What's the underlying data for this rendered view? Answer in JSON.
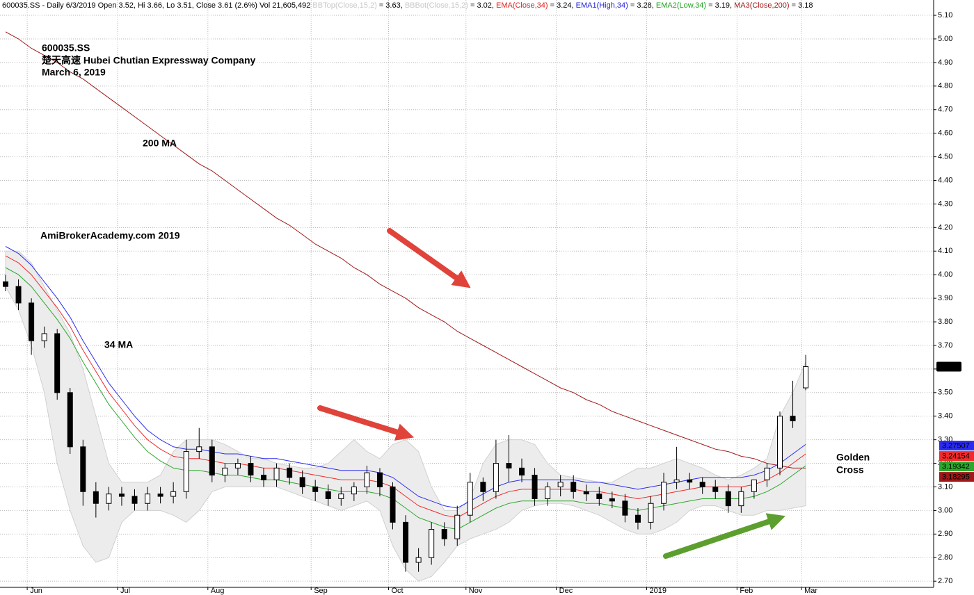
{
  "chart_data": {
    "type": "candlestick",
    "header": [
      {
        "text": "600035.SS - Daily 6/3/2019 Open 3.52, Hi 3.66, Lo 3.51, Close 3.61 (2.6%) Vol 21,605,492 ",
        "color": "#000000"
      },
      {
        "text": "BBTop(Close,15,2)",
        "color": "#c8c8c8"
      },
      {
        "text": " = 3.63, ",
        "color": "#000000"
      },
      {
        "text": "BBBot(Close,15,2)",
        "color": "#c8c8c8"
      },
      {
        "text": " = 3.02, ",
        "color": "#000000"
      },
      {
        "text": "EMA(Close,34)",
        "color": "#e02020"
      },
      {
        "text": " = 3.24, ",
        "color": "#000000"
      },
      {
        "text": "EMA1(High,34)",
        "color": "#2020e0"
      },
      {
        "text": " = 3.28, ",
        "color": "#000000"
      },
      {
        "text": "EMA2(Low,34)",
        "color": "#20a020"
      },
      {
        "text": " = 3.19, ",
        "color": "#000000"
      },
      {
        "text": "MA3(Close,200)",
        "color": "#a01818"
      },
      {
        "text": " = 3.18",
        "color": "#000000"
      }
    ],
    "annotations": [
      "600035.SS",
      "楚天高速  Hubei Chutian Expressway Company",
      "March 6, 2019",
      "200 MA",
      "AmiBrokerAcademy.com   2019",
      "34 MA",
      "Golden",
      "Cross"
    ],
    "annotation_color": "#e8453c",
    "categories": [
      null,
      null,
      "Jun",
      null,
      null,
      null,
      null,
      null,
      null,
      "Jul",
      null,
      null,
      null,
      null,
      null,
      null,
      "Aug",
      null,
      null,
      null,
      null,
      null,
      null,
      null,
      "Sep",
      null,
      null,
      null,
      null,
      null,
      "Oct",
      null,
      null,
      null,
      null,
      null,
      "Nov",
      null,
      null,
      null,
      null,
      null,
      null,
      "Dec",
      null,
      null,
      null,
      null,
      null,
      null,
      "2019",
      null,
      null,
      null,
      null,
      null,
      null,
      "Feb",
      null,
      null,
      null,
      null,
      "Mar"
    ],
    "open": [
      3.97,
      3.95,
      3.88,
      3.72,
      3.75,
      3.5,
      3.27,
      3.08,
      3.03,
      3.07,
      3.06,
      3.03,
      3.07,
      3.06,
      3.08,
      3.25,
      3.27,
      3.15,
      3.18,
      3.2,
      3.15,
      3.13,
      3.18,
      3.14,
      3.1,
      3.08,
      3.05,
      3.07,
      3.1,
      3.16,
      3.1,
      2.95,
      2.78,
      2.8,
      2.92,
      2.88,
      2.98,
      3.12,
      3.08,
      3.2,
      3.18,
      3.15,
      3.05,
      3.1,
      3.12,
      3.08,
      3.07,
      3.05,
      3.04,
      2.98,
      2.95,
      3.03,
      3.12,
      3.13,
      3.12,
      3.1,
      3.08,
      3.02,
      3.08,
      3.13,
      3.18,
      3.4,
      3.52
    ],
    "high": [
      4.0,
      3.98,
      3.9,
      3.78,
      3.77,
      3.52,
      3.3,
      3.12,
      3.1,
      3.1,
      3.09,
      3.1,
      3.1,
      3.12,
      3.3,
      3.35,
      3.3,
      3.2,
      3.22,
      3.23,
      3.18,
      3.2,
      3.2,
      3.17,
      3.13,
      3.11,
      3.1,
      3.12,
      3.19,
      3.18,
      3.12,
      2.98,
      2.84,
      2.95,
      2.95,
      3.02,
      3.16,
      3.14,
      3.3,
      3.32,
      3.22,
      3.18,
      3.12,
      3.15,
      3.15,
      3.11,
      3.1,
      3.08,
      3.07,
      3.01,
      3.06,
      3.16,
      3.27,
      3.16,
      3.14,
      3.13,
      3.11,
      3.1,
      3.12,
      3.2,
      3.42,
      3.55,
      3.66
    ],
    "low": [
      3.93,
      3.85,
      3.66,
      3.69,
      3.47,
      3.24,
      3.02,
      2.97,
      3.0,
      3.02,
      3.0,
      3.0,
      3.03,
      3.03,
      3.05,
      3.22,
      3.12,
      3.12,
      3.15,
      3.12,
      3.1,
      3.1,
      3.11,
      3.07,
      3.04,
      3.02,
      3.02,
      3.04,
      3.07,
      3.06,
      2.92,
      2.74,
      2.74,
      2.77,
      2.85,
      2.85,
      2.95,
      3.04,
      3.05,
      3.12,
      3.12,
      3.02,
      3.02,
      3.06,
      3.05,
      3.04,
      3.02,
      3.01,
      2.95,
      2.92,
      2.92,
      3.0,
      3.09,
      3.09,
      3.07,
      3.05,
      2.99,
      2.99,
      3.05,
      3.1,
      3.15,
      3.35,
      3.51
    ],
    "close": [
      3.95,
      3.88,
      3.72,
      3.75,
      3.5,
      3.27,
      3.08,
      3.03,
      3.07,
      3.06,
      3.03,
      3.07,
      3.06,
      3.08,
      3.25,
      3.27,
      3.15,
      3.18,
      3.2,
      3.15,
      3.13,
      3.18,
      3.14,
      3.1,
      3.08,
      3.05,
      3.07,
      3.1,
      3.16,
      3.1,
      2.95,
      2.78,
      2.8,
      2.92,
      2.88,
      2.98,
      3.12,
      3.08,
      3.2,
      3.18,
      3.15,
      3.05,
      3.1,
      3.12,
      3.08,
      3.07,
      3.05,
      3.04,
      2.98,
      2.95,
      3.03,
      3.12,
      3.13,
      3.12,
      3.1,
      3.08,
      3.02,
      3.08,
      3.13,
      3.18,
      3.4,
      3.38,
      3.61
    ],
    "up_color": "#ffffff",
    "down_color": "#000000",
    "band": {
      "color": "#ececec",
      "upper": [
        4.1,
        4.1,
        4.05,
        3.95,
        3.85,
        3.75,
        3.6,
        3.4,
        3.2,
        3.12,
        3.12,
        3.12,
        3.15,
        3.25,
        3.3,
        3.3,
        3.3,
        3.28,
        3.25,
        3.22,
        3.22,
        3.2,
        3.19,
        3.18,
        3.18,
        3.2,
        3.25,
        3.3,
        3.25,
        3.22,
        3.28,
        3.3,
        3.25,
        3.1,
        3.0,
        3.0,
        3.05,
        3.2,
        3.28,
        3.3,
        3.3,
        3.28,
        3.2,
        3.15,
        3.14,
        3.13,
        3.12,
        3.12,
        3.15,
        3.18,
        3.18,
        3.2,
        3.22,
        3.2,
        3.18,
        3.15,
        3.13,
        3.15,
        3.18,
        3.22,
        3.4,
        3.5,
        3.63
      ],
      "lower": [
        3.95,
        3.85,
        3.7,
        3.5,
        3.2,
        3.0,
        2.85,
        2.78,
        2.8,
        2.95,
        3.0,
        3.0,
        3.0,
        2.98,
        2.95,
        3.0,
        3.08,
        3.1,
        3.1,
        3.1,
        3.1,
        3.1,
        3.08,
        3.06,
        3.04,
        3.02,
        3.0,
        3.02,
        3.04,
        3.0,
        2.85,
        2.75,
        2.7,
        2.72,
        2.78,
        2.85,
        2.88,
        2.9,
        2.92,
        2.95,
        3.0,
        3.02,
        3.03,
        3.03,
        3.02,
        3.0,
        2.98,
        2.95,
        2.92,
        2.9,
        2.9,
        2.92,
        2.95,
        3.0,
        3.02,
        3.02,
        3.0,
        2.98,
        2.98,
        3.0,
        3.0,
        3.01,
        3.02
      ]
    },
    "series": [
      {
        "color": "#a01818",
        "values": [
          5.03,
          5.0,
          4.96,
          4.93,
          4.9,
          4.86,
          4.83,
          4.79,
          4.75,
          4.71,
          4.67,
          4.63,
          4.59,
          4.55,
          4.51,
          4.47,
          4.44,
          4.4,
          4.36,
          4.32,
          4.28,
          4.24,
          4.21,
          4.17,
          4.13,
          4.1,
          4.07,
          4.03,
          4.0,
          3.96,
          3.93,
          3.9,
          3.86,
          3.83,
          3.8,
          3.76,
          3.73,
          3.7,
          3.67,
          3.64,
          3.61,
          3.58,
          3.55,
          3.52,
          3.5,
          3.47,
          3.45,
          3.42,
          3.4,
          3.38,
          3.36,
          3.34,
          3.32,
          3.3,
          3.28,
          3.26,
          3.25,
          3.23,
          3.22,
          3.2,
          3.19,
          3.18,
          3.18
        ]
      },
      {
        "color": "#2b2bef",
        "values": [
          4.12,
          4.09,
          4.04,
          3.97,
          3.9,
          3.82,
          3.72,
          3.63,
          3.54,
          3.47,
          3.4,
          3.34,
          3.3,
          3.27,
          3.26,
          3.26,
          3.25,
          3.24,
          3.24,
          3.23,
          3.22,
          3.22,
          3.21,
          3.2,
          3.19,
          3.18,
          3.17,
          3.17,
          3.17,
          3.16,
          3.14,
          3.1,
          3.06,
          3.04,
          3.02,
          3.01,
          3.04,
          3.07,
          3.1,
          3.12,
          3.13,
          3.13,
          3.13,
          3.13,
          3.13,
          3.12,
          3.12,
          3.11,
          3.1,
          3.09,
          3.1,
          3.11,
          3.12,
          3.13,
          3.14,
          3.14,
          3.14,
          3.14,
          3.15,
          3.17,
          3.2,
          3.24,
          3.28
        ]
      },
      {
        "color": "#ef2b2b",
        "values": [
          4.08,
          4.05,
          4.0,
          3.93,
          3.86,
          3.78,
          3.68,
          3.59,
          3.5,
          3.43,
          3.36,
          3.3,
          3.26,
          3.23,
          3.22,
          3.22,
          3.21,
          3.2,
          3.2,
          3.19,
          3.18,
          3.18,
          3.17,
          3.16,
          3.15,
          3.14,
          3.13,
          3.13,
          3.13,
          3.12,
          3.1,
          3.06,
          3.02,
          3.0,
          2.98,
          2.97,
          3.0,
          3.03,
          3.06,
          3.08,
          3.09,
          3.09,
          3.09,
          3.09,
          3.09,
          3.08,
          3.08,
          3.07,
          3.06,
          3.05,
          3.06,
          3.07,
          3.08,
          3.09,
          3.1,
          3.1,
          3.1,
          3.1,
          3.11,
          3.13,
          3.16,
          3.2,
          3.24
        ]
      },
      {
        "color": "#2ba82b",
        "values": [
          4.03,
          4.0,
          3.95,
          3.88,
          3.81,
          3.73,
          3.63,
          3.54,
          3.45,
          3.38,
          3.31,
          3.25,
          3.21,
          3.18,
          3.17,
          3.17,
          3.16,
          3.15,
          3.15,
          3.14,
          3.13,
          3.13,
          3.12,
          3.11,
          3.1,
          3.09,
          3.08,
          3.08,
          3.08,
          3.07,
          3.05,
          3.01,
          2.97,
          2.95,
          2.93,
          2.92,
          2.95,
          2.98,
          3.01,
          3.03,
          3.04,
          3.04,
          3.04,
          3.04,
          3.04,
          3.03,
          3.03,
          3.02,
          3.01,
          3.0,
          3.01,
          3.02,
          3.03,
          3.04,
          3.05,
          3.05,
          3.05,
          3.05,
          3.06,
          3.08,
          3.11,
          3.15,
          3.19
        ]
      }
    ],
    "last_labels": [
      {
        "value": 3.61,
        "label": "3.61",
        "color": "#000000",
        "text_color": "#ffffff"
      },
      {
        "value": 3.27507,
        "label": "3.27507",
        "color": "#2b2bef",
        "text_color": "#ffffff"
      },
      {
        "value": 3.24154,
        "label": "3.24154",
        "color": "#ef2b2b",
        "text_color": "#000000"
      },
      {
        "value": 3.19342,
        "label": "3.19342",
        "color": "#2ba82b",
        "text_color": "#000000"
      },
      {
        "value": 3.18295,
        "label": "3.18295",
        "color": "#a01818",
        "text_color": "#ffffff"
      }
    ],
    "ylim": [
      2.674,
      5.165
    ],
    "yticks": [
      {
        "value": 2.7,
        "label": "2.70"
      },
      {
        "value": 2.8,
        "label": "2.80"
      },
      {
        "value": 2.9,
        "label": "2.90"
      },
      {
        "value": 3.0,
        "label": "3.00"
      },
      {
        "value": 3.1,
        "label": "3.10"
      },
      {
        "value": 3.2,
        "label": "3.20"
      },
      {
        "value": 3.3,
        "label": "3.30"
      },
      {
        "value": 3.4,
        "label": "3.40"
      },
      {
        "value": 3.5,
        "label": "3.50"
      },
      {
        "value": 3.6,
        "label": "3.60"
      },
      {
        "value": 3.7,
        "label": "3.70"
      },
      {
        "value": 3.8,
        "label": "3.80"
      },
      {
        "value": 3.9,
        "label": "3.90"
      },
      {
        "value": 4.0,
        "label": "4.00"
      },
      {
        "value": 4.1,
        "label": "4.10"
      },
      {
        "value": 4.2,
        "label": "4.20"
      },
      {
        "value": 4.3,
        "label": "4.30"
      },
      {
        "value": 4.4,
        "label": "4.40"
      },
      {
        "value": 4.5,
        "label": "4.50"
      },
      {
        "value": 4.6,
        "label": "4.60"
      },
      {
        "value": 4.7,
        "label": "4.70"
      },
      {
        "value": 4.8,
        "label": "4.80"
      },
      {
        "value": 4.9,
        "label": "4.90"
      },
      {
        "value": 5.0,
        "label": "5.00"
      },
      {
        "value": 5.1,
        "label": "5.10"
      }
    ],
    "grid": true
  }
}
